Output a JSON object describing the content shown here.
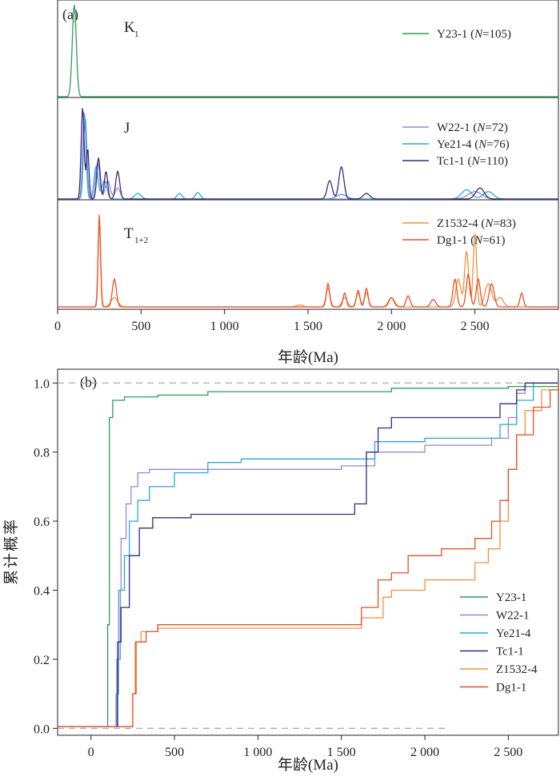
{
  "chart_data": [
    {
      "type": "line",
      "panel_label": "(a)",
      "xlabel": "年龄(Ma)",
      "ylabel": "",
      "xlim": [
        0,
        3000
      ],
      "x_ticks": [
        0,
        500,
        1000,
        1500,
        2000,
        2500
      ],
      "x_tick_labels": [
        "0",
        "500",
        "1 000",
        "1 500",
        "2 000",
        "2 500"
      ],
      "grid": false,
      "groups": [
        {
          "label": "K",
          "label_sub": "1",
          "series": [
            {
              "name": "Y23-1",
              "n_label": "105",
              "color": "#2e9e57",
              "peaks": [
                [
                  100,
                  1.0,
                  12
                ]
              ]
            }
          ]
        },
        {
          "label": "J",
          "label_sub": "",
          "series": [
            {
              "name": "W22-1",
              "n_label": "72",
              "color": "#9b87d1",
              "peaks": [
                [
                  160,
                  0.95,
                  10
                ],
                [
                  240,
                  0.4,
                  12
                ],
                [
                  300,
                  0.2,
                  15
                ],
                [
                  360,
                  0.12,
                  15
                ],
                [
                  2500,
                  0.08,
                  40
                ]
              ]
            },
            {
              "name": "Ye21-4",
              "n_label": "76",
              "color": "#2aa7dc",
              "peaks": [
                [
                  165,
                  0.9,
                  10
                ],
                [
                  230,
                  0.35,
                  12
                ],
                [
                  280,
                  0.2,
                  15
                ],
                [
                  480,
                  0.06,
                  20
                ],
                [
                  730,
                  0.06,
                  15
                ],
                [
                  840,
                  0.07,
                  15
                ],
                [
                  1700,
                  0.05,
                  30
                ],
                [
                  2450,
                  0.1,
                  30
                ],
                [
                  2580,
                  0.08,
                  30
                ]
              ]
            },
            {
              "name": "Tc1-1",
              "n_label": "110",
              "color": "#3b2a7e",
              "peaks": [
                [
                  150,
                  1.0,
                  9
                ],
                [
                  180,
                  0.55,
                  8
                ],
                [
                  245,
                  0.45,
                  10
                ],
                [
                  290,
                  0.3,
                  10
                ],
                [
                  360,
                  0.3,
                  12
                ],
                [
                  1630,
                  0.2,
                  15
                ],
                [
                  1700,
                  0.35,
                  15
                ],
                [
                  1850,
                  0.06,
                  20
                ],
                [
                  2530,
                  0.12,
                  25
                ]
              ]
            }
          ]
        },
        {
          "label": "T",
          "label_sub": "1+2",
          "series": [
            {
              "name": "Z1532-4",
              "n_label": "83",
              "color": "#f0913a",
              "peaks": [
                [
                  250,
                  0.9,
                  8
                ],
                [
                  340,
                  0.1,
                  20
                ],
                [
                  1450,
                  0.02,
                  20
                ],
                [
                  1620,
                  0.2,
                  12
                ],
                [
                  1720,
                  0.1,
                  15
                ],
                [
                  1800,
                  0.15,
                  12
                ],
                [
                  1850,
                  0.15,
                  12
                ],
                [
                  2000,
                  0.1,
                  18
                ],
                [
                  2400,
                  0.3,
                  15
                ],
                [
                  2450,
                  0.6,
                  12
                ],
                [
                  2500,
                  0.8,
                  10
                ],
                [
                  2580,
                  0.25,
                  20
                ],
                [
                  2650,
                  0.1,
                  20
                ]
              ]
            },
            {
              "name": "Dg1-1",
              "n_label": "61",
              "color": "#e8502a",
              "peaks": [
                [
                  250,
                  1.0,
                  7
                ],
                [
                  340,
                  0.3,
                  12
                ],
                [
                  1620,
                  0.25,
                  10
                ],
                [
                  1720,
                  0.15,
                  10
                ],
                [
                  1800,
                  0.18,
                  10
                ],
                [
                  1850,
                  0.2,
                  10
                ],
                [
                  2000,
                  0.1,
                  15
                ],
                [
                  2100,
                  0.12,
                  12
                ],
                [
                  2250,
                  0.08,
                  15
                ],
                [
                  2380,
                  0.3,
                  12
                ],
                [
                  2460,
                  0.35,
                  12
                ],
                [
                  2520,
                  0.3,
                  12
                ],
                [
                  2600,
                  0.25,
                  15
                ],
                [
                  2780,
                  0.15,
                  10
                ]
              ]
            }
          ]
        }
      ]
    },
    {
      "type": "line",
      "panel_label": "(b)",
      "xlabel": "年龄(Ma)",
      "ylabel": "累计概率",
      "xlim": [
        -200,
        2800
      ],
      "ylim": [
        -0.02,
        1.04
      ],
      "x_ticks": [
        0,
        500,
        1000,
        1500,
        2000,
        2500
      ],
      "x_tick_labels": [
        "0",
        "500",
        "1 000",
        "1 500",
        "2 000",
        "2 500"
      ],
      "y_ticks": [
        0.0,
        0.2,
        0.4,
        0.6,
        0.8,
        1.0
      ],
      "y_tick_labels": [
        "0.0",
        "0.2",
        "0.4",
        "0.6",
        "0.8",
        "1.0"
      ],
      "reference_lines": [
        {
          "y": 1.0,
          "x_range": [
            -200,
            2800
          ]
        },
        {
          "y": 0.0,
          "x_range": [
            -200,
            2150
          ]
        }
      ],
      "legend_position": "bottom-right",
      "grid": false,
      "series": [
        {
          "name": "Y23-1",
          "color": "#2e9e57",
          "points": [
            [
              -200,
              0.005
            ],
            [
              90,
              0.005
            ],
            [
              100,
              0.3
            ],
            [
              110,
              0.9
            ],
            [
              130,
              0.95
            ],
            [
              200,
              0.96
            ],
            [
              400,
              0.965
            ],
            [
              700,
              0.975
            ],
            [
              1500,
              0.975
            ],
            [
              1800,
              0.985
            ],
            [
              2500,
              0.99
            ],
            [
              2800,
              1.0
            ]
          ]
        },
        {
          "name": "W22-1",
          "color": "#9b87d1",
          "points": [
            [
              -200,
              0.005
            ],
            [
              140,
              0.005
            ],
            [
              150,
              0.1
            ],
            [
              165,
              0.4
            ],
            [
              180,
              0.55
            ],
            [
              210,
              0.65
            ],
            [
              240,
              0.7
            ],
            [
              280,
              0.74
            ],
            [
              350,
              0.75
            ],
            [
              700,
              0.75
            ],
            [
              1500,
              0.76
            ],
            [
              1700,
              0.8
            ],
            [
              2000,
              0.82
            ],
            [
              2400,
              0.84
            ],
            [
              2500,
              0.9
            ],
            [
              2550,
              0.97
            ],
            [
              2600,
              1.0
            ],
            [
              2800,
              1.0
            ]
          ]
        },
        {
          "name": "Ye21-4",
          "color": "#2aa7dc",
          "points": [
            [
              -200,
              0.005
            ],
            [
              140,
              0.005
            ],
            [
              155,
              0.2
            ],
            [
              175,
              0.4
            ],
            [
              200,
              0.5
            ],
            [
              230,
              0.6
            ],
            [
              280,
              0.66
            ],
            [
              350,
              0.7
            ],
            [
              500,
              0.74
            ],
            [
              700,
              0.77
            ],
            [
              900,
              0.78
            ],
            [
              1500,
              0.78
            ],
            [
              1700,
              0.83
            ],
            [
              2000,
              0.84
            ],
            [
              2450,
              0.88
            ],
            [
              2550,
              0.95
            ],
            [
              2650,
              1.0
            ],
            [
              2800,
              1.0
            ]
          ]
        },
        {
          "name": "Tc1-1",
          "color": "#3b2a7e",
          "points": [
            [
              -200,
              0.005
            ],
            [
              145,
              0.005
            ],
            [
              160,
              0.25
            ],
            [
              180,
              0.35
            ],
            [
              230,
              0.5
            ],
            [
              290,
              0.58
            ],
            [
              370,
              0.61
            ],
            [
              600,
              0.62
            ],
            [
              1000,
              0.62
            ],
            [
              1500,
              0.62
            ],
            [
              1580,
              0.65
            ],
            [
              1650,
              0.8
            ],
            [
              1720,
              0.87
            ],
            [
              1800,
              0.9
            ],
            [
              2000,
              0.9
            ],
            [
              2450,
              0.94
            ],
            [
              2550,
              0.98
            ],
            [
              2600,
              1.0
            ],
            [
              2800,
              1.0
            ]
          ]
        },
        {
          "name": "Z1532-4",
          "color": "#f0913a",
          "points": [
            [
              -200,
              0.005
            ],
            [
              240,
              0.005
            ],
            [
              250,
              0.1
            ],
            [
              265,
              0.25
            ],
            [
              300,
              0.28
            ],
            [
              400,
              0.29
            ],
            [
              1000,
              0.29
            ],
            [
              1600,
              0.29
            ],
            [
              1620,
              0.32
            ],
            [
              1750,
              0.38
            ],
            [
              1800,
              0.4
            ],
            [
              2000,
              0.43
            ],
            [
              2300,
              0.48
            ],
            [
              2380,
              0.52
            ],
            [
              2450,
              0.6
            ],
            [
              2500,
              0.75
            ],
            [
              2550,
              0.85
            ],
            [
              2600,
              0.92
            ],
            [
              2700,
              0.98
            ],
            [
              2800,
              1.0
            ]
          ]
        },
        {
          "name": "Dg1-1",
          "color": "#e8502a",
          "points": [
            [
              -200,
              0.005
            ],
            [
              240,
              0.005
            ],
            [
              250,
              0.1
            ],
            [
              270,
              0.25
            ],
            [
              330,
              0.28
            ],
            [
              400,
              0.3
            ],
            [
              1000,
              0.3
            ],
            [
              1600,
              0.3
            ],
            [
              1620,
              0.35
            ],
            [
              1720,
              0.43
            ],
            [
              1800,
              0.45
            ],
            [
              1900,
              0.5
            ],
            [
              2100,
              0.52
            ],
            [
              2300,
              0.55
            ],
            [
              2400,
              0.6
            ],
            [
              2450,
              0.66
            ],
            [
              2500,
              0.75
            ],
            [
              2550,
              0.85
            ],
            [
              2650,
              0.93
            ],
            [
              2750,
              0.98
            ],
            [
              2800,
              1.0
            ]
          ]
        }
      ]
    }
  ]
}
